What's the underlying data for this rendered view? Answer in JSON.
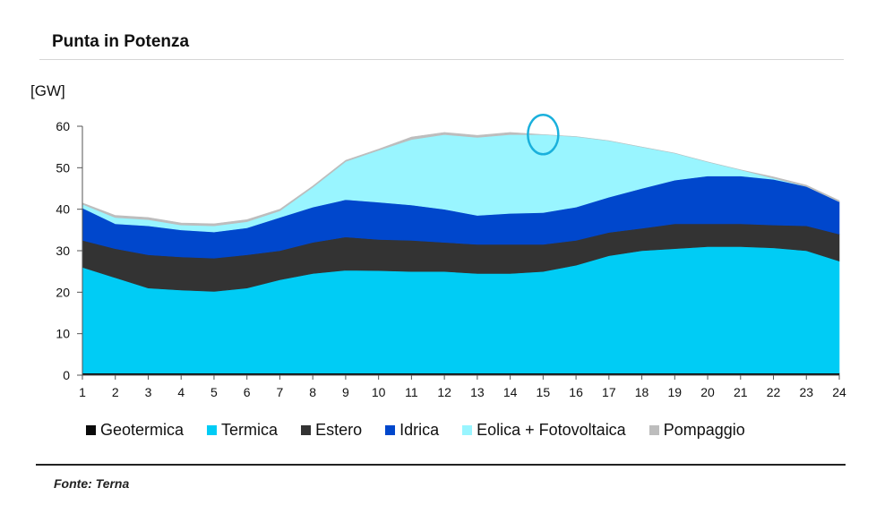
{
  "title": "Punta in Potenza",
  "unit_label": "[GW]",
  "source": "Fonte: Terna",
  "chart_data": {
    "type": "area",
    "stacked": true,
    "title": "Punta in Potenza",
    "ylabel": "[GW]",
    "xlabel": "",
    "x": [
      1,
      2,
      3,
      4,
      5,
      6,
      7,
      8,
      9,
      10,
      11,
      12,
      13,
      14,
      15,
      16,
      17,
      18,
      19,
      20,
      21,
      22,
      23,
      24
    ],
    "ylim": [
      0,
      60
    ],
    "yticks": [
      0,
      10,
      20,
      30,
      40,
      50,
      60
    ],
    "grid": false,
    "legend_position": "bottom",
    "series": [
      {
        "name": "Geotermica",
        "color": "#0a0a0a",
        "values": [
          0.5,
          0.5,
          0.5,
          0.5,
          0.5,
          0.5,
          0.5,
          0.5,
          0.5,
          0.5,
          0.5,
          0.5,
          0.5,
          0.5,
          0.5,
          0.5,
          0.5,
          0.5,
          0.5,
          0.5,
          0.5,
          0.5,
          0.5,
          0.5
        ]
      },
      {
        "name": "Termica",
        "color": "#00ccf5",
        "values": [
          25.5,
          23.0,
          20.5,
          20.0,
          19.7,
          20.5,
          22.5,
          24.0,
          24.8,
          24.7,
          24.5,
          24.5,
          24.0,
          24.0,
          24.5,
          26.0,
          28.3,
          29.5,
          30.0,
          30.5,
          30.5,
          30.2,
          29.5,
          27.0
        ]
      },
      {
        "name": "Estero",
        "color": "#333333",
        "values": [
          6.5,
          7.0,
          8.0,
          8.0,
          8.0,
          8.0,
          7.0,
          7.5,
          8.0,
          7.5,
          7.5,
          7.0,
          7.0,
          7.0,
          6.5,
          6.0,
          5.6,
          5.4,
          6.0,
          5.5,
          5.5,
          5.5,
          6.0,
          6.5
        ]
      },
      {
        "name": "Idrica",
        "color": "#0047cc",
        "values": [
          7.8,
          6.0,
          7.0,
          6.5,
          6.3,
          6.5,
          8.0,
          8.5,
          9.0,
          9.0,
          8.5,
          8.0,
          7.0,
          7.5,
          7.7,
          8.0,
          8.5,
          9.6,
          10.5,
          11.5,
          11.5,
          11.0,
          9.5,
          7.8
        ]
      },
      {
        "name": "Eolica + Fotovoltaica",
        "color": "#99f5ff",
        "values": [
          0.9,
          1.5,
          1.5,
          1.2,
          1.5,
          1.5,
          1.6,
          4.8,
          9.2,
          12.5,
          15.8,
          18.0,
          18.8,
          19.0,
          18.8,
          17.0,
          13.6,
          10.0,
          6.5,
          3.4,
          1.5,
          0.3,
          0.0,
          0.0
        ]
      },
      {
        "name": "Pompaggio",
        "color": "#bdbdbd",
        "values": [
          0.3,
          0.5,
          0.5,
          0.5,
          0.5,
          0.5,
          0.4,
          0.3,
          0.3,
          0.3,
          0.6,
          0.5,
          0.5,
          0.5,
          0.0,
          0.0,
          0.0,
          0.0,
          0.0,
          0.0,
          0.0,
          0.3,
          0.3,
          0.3
        ]
      }
    ],
    "annotations": [
      {
        "type": "ellipse",
        "x": 15,
        "y": 58,
        "color": "#1ab0dc"
      }
    ]
  }
}
